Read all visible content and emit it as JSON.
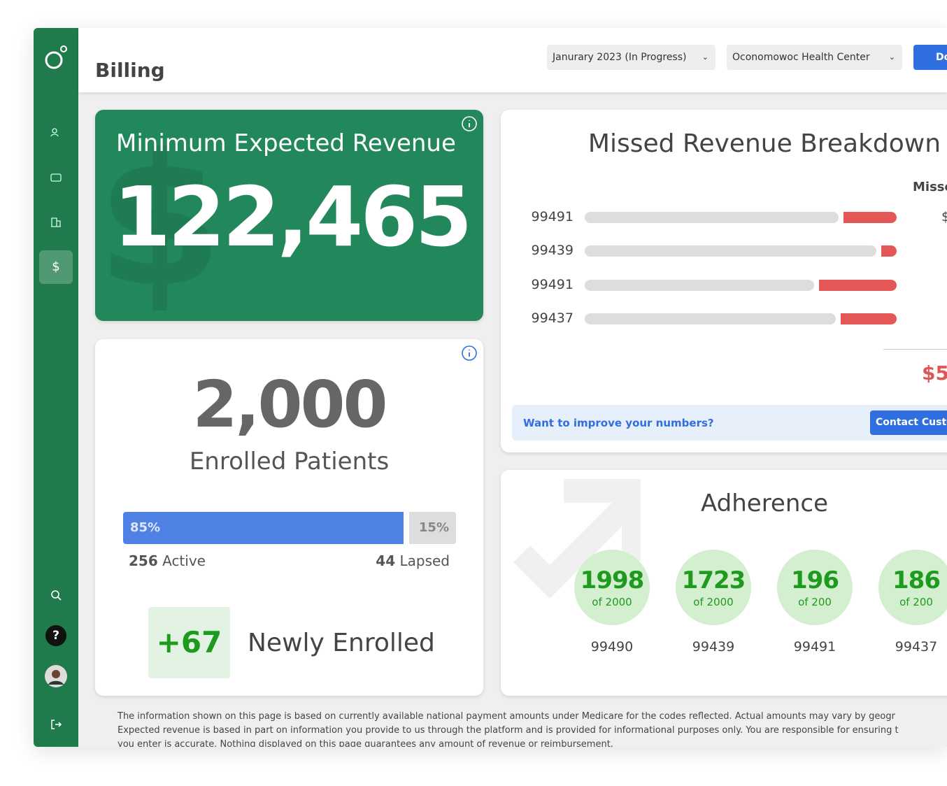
{
  "sidebar": {
    "active_icon": "$",
    "help_icon": "?"
  },
  "header": {
    "title": "Billing",
    "period": "Janurary 2023 (In Progress)",
    "location": "Oconomowoc Health Center",
    "button": "Do"
  },
  "revenue_card": {
    "title": "Minimum Expected Revenue",
    "value": "122,465"
  },
  "enrolled_card": {
    "value": "2,000",
    "label": "Enrolled Patients",
    "active_share": {
      "value": 85,
      "label": "85%"
    },
    "lapsed_share": {
      "value": 15,
      "label": "15%"
    },
    "active_count": "256",
    "active_label": "Active",
    "lapsed_count": "44",
    "lapsed_label": "Lapsed",
    "new_count": "+67",
    "new_label": "Newly Enrolled"
  },
  "missed_card": {
    "title": "Missed Revenue Breakdown",
    "column_header": "Misse",
    "amount_fragment": "$",
    "total": "$5",
    "rows": [
      {
        "code": "99491",
        "missed_share": 17
      },
      {
        "code": "99439",
        "missed_share": 5
      },
      {
        "code": "99491",
        "missed_share": 25
      },
      {
        "code": "99437",
        "missed_share": 18
      }
    ],
    "banner_text": "Want to improve your numbers?",
    "banner_button": "Contact Custo"
  },
  "adherence_card": {
    "title": "Adherence",
    "items": [
      {
        "value": "1998",
        "of": "of 2000",
        "code": "99490"
      },
      {
        "value": "1723",
        "of": "of 2000",
        "code": "99439"
      },
      {
        "value": "196",
        "of": "of 200",
        "code": "99491"
      },
      {
        "value": "186",
        "of": "of 200",
        "code": "99437"
      }
    ]
  },
  "footer": {
    "lines": [
      "The information shown on this page is based on currently available national payment amounts under Medicare for the codes reflected. Actual amounts may vary by geogr",
      "Expected revenue is based in part on information you provide to us through the platform and is provided for informational purposes only. You are responsible for ensuring t",
      "you enter is accurate. Nothing displayed on this page guarantees any amount of revenue or reimbursement."
    ]
  }
}
